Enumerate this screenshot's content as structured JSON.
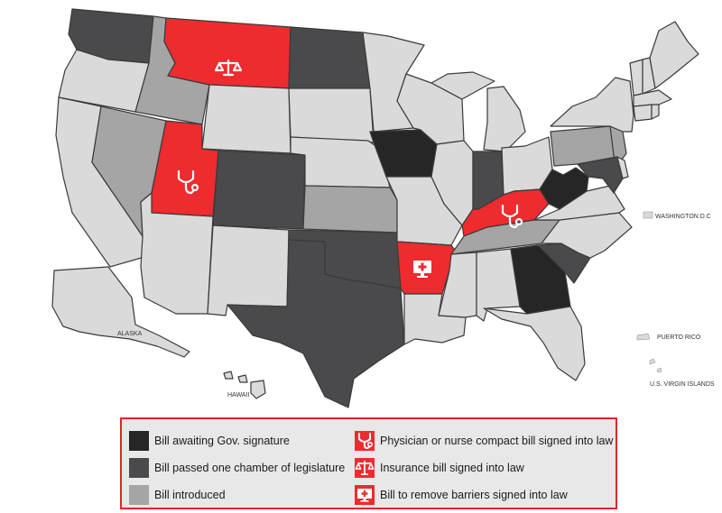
{
  "map": {
    "territories": {
      "dc": "WASHINGTON D.C",
      "puerto_rico": "PUERTO RICO",
      "usvi": "U.S. VIRGIN ISLANDS",
      "alaska": "ALASKA",
      "hawaii": "HAWAII"
    },
    "categories": {
      "awaiting": [
        "Iowa",
        "Georgia",
        "West Virginia"
      ],
      "passed_one_chamber": [
        "Washington",
        "North Dakota",
        "Colorado",
        "Oklahoma",
        "Texas",
        "Indiana",
        "South Carolina",
        "Maryland"
      ],
      "introduced": [
        "Idaho",
        "Nevada",
        "Kansas",
        "Tennessee",
        "Pennsylvania",
        "New Jersey"
      ],
      "compact_signed": [
        "Utah",
        "Kentucky"
      ],
      "insurance_signed": [
        "Montana"
      ],
      "barriers_signed": [
        "Arkansas"
      ]
    },
    "colors": {
      "no_action": "#dadada",
      "introduced": "#a5a5a6",
      "passed": "#4a4a4c",
      "awaiting": "#262626",
      "signed": "#ee2b2f",
      "border": "#e2252a"
    }
  },
  "legend": {
    "awaiting": "Bill awaiting Gov. signature",
    "passed": "Bill passed one chamber of legislature",
    "introduced": "Bill introduced",
    "compact": "Physician or nurse compact bill signed into law",
    "insurance": "Insurance bill signed into law",
    "barriers": "Bill to remove barriers signed into law"
  },
  "icons": {
    "compact": "stethoscope-icon",
    "insurance": "scales-of-justice-icon",
    "barriers": "medical-monitor-icon"
  }
}
